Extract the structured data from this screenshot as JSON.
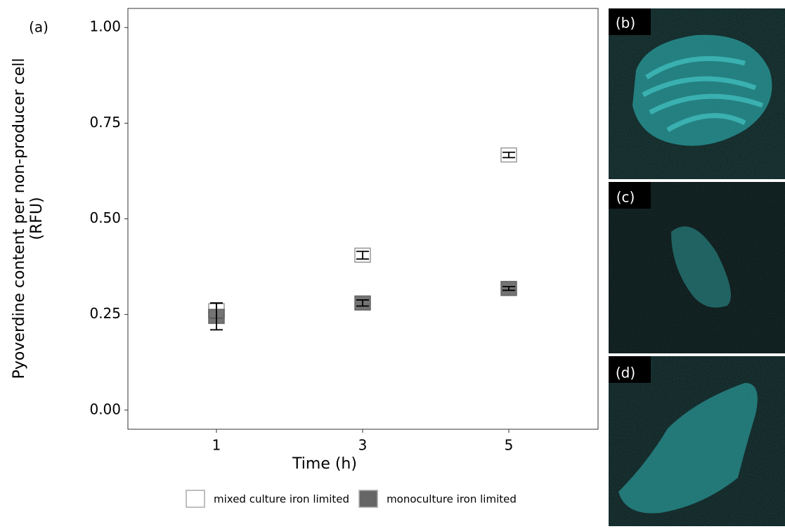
{
  "chart_data": {
    "type": "errorbar",
    "y_label": [
      "Pyoverdine content per non-producer cell",
      "(RFU)"
    ],
    "x_label": "Time (h)",
    "categories": [
      "1",
      "3",
      "5"
    ],
    "series": [
      {
        "name": "mixed culture iron limited",
        "color": "#ffffff",
        "values": [
          0.26,
          0.405,
          0.667
        ],
        "errors": [
          0.02,
          0.01,
          0.007
        ]
      },
      {
        "name": "monoculture iron limited",
        "color": "#666666",
        "values": [
          0.245,
          0.28,
          0.318
        ],
        "errors": [
          0.035,
          0.008,
          0.005
        ]
      }
    ],
    "ylim": [
      -0.05,
      1.05
    ],
    "yticks": [
      {
        "value": 0,
        "label": "0.00"
      },
      {
        "value": 0.25,
        "label": "0.25"
      },
      {
        "value": 0.5,
        "label": "0.50"
      },
      {
        "value": 0.75,
        "label": "0.75"
      },
      {
        "value": 1,
        "label": "1.00"
      }
    ],
    "legend": "bottom"
  },
  "panels": {
    "a": "(a)",
    "b": "(b)",
    "c": "(c)",
    "d": "(d)"
  }
}
